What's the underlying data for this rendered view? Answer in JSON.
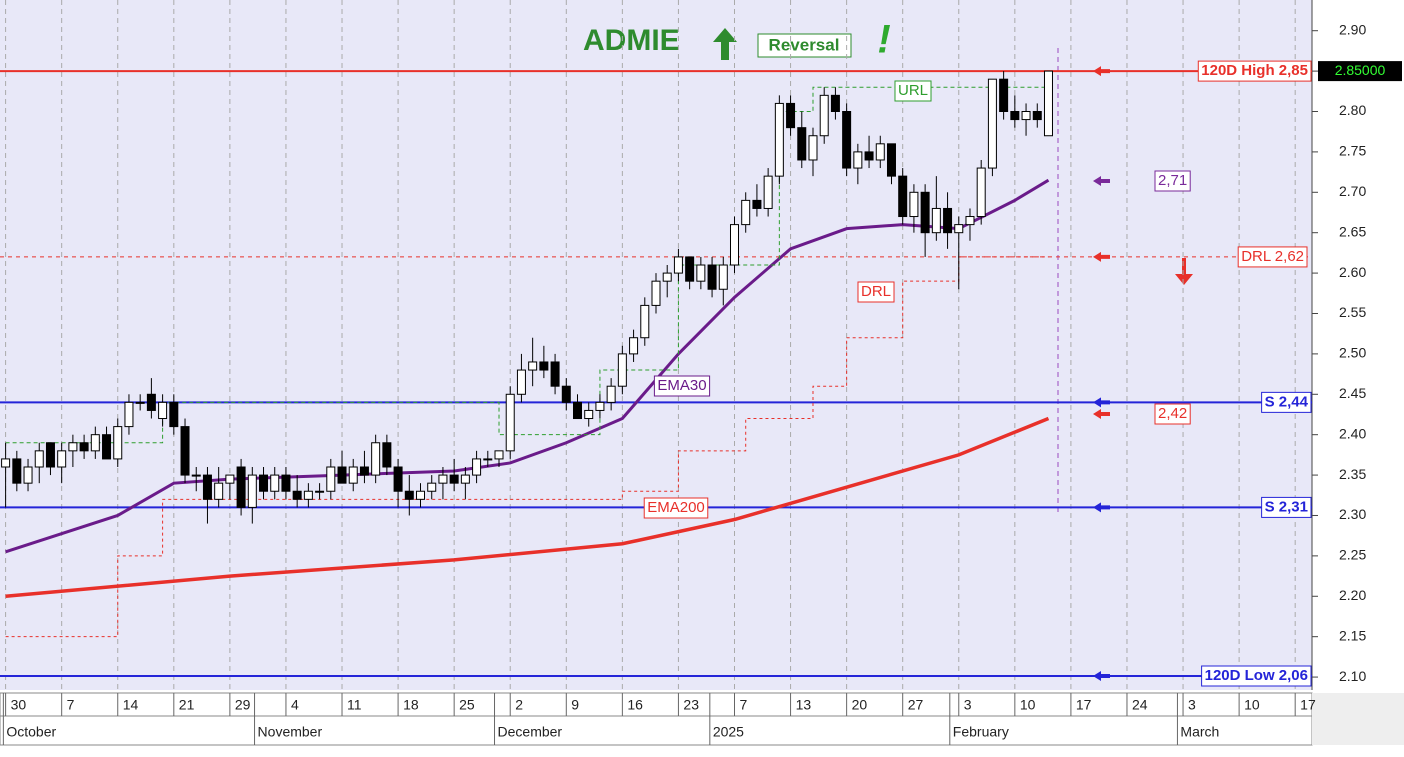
{
  "chart_data": {
    "type": "candlestick",
    "title": "ADMIE",
    "subtitle": "Reversal",
    "annotation_mark": "!",
    "ylim": [
      2.084,
      2.938
    ],
    "xlim": [
      -0.5,
      116.5
    ],
    "yticks": [
      {
        "value": 2.1,
        "label": "2.10"
      },
      {
        "value": 2.15,
        "label": "2.15"
      },
      {
        "value": 2.2,
        "label": "2.20"
      },
      {
        "value": 2.25,
        "label": "2.25"
      },
      {
        "value": 2.3,
        "label": "2.30"
      },
      {
        "value": 2.35,
        "label": "2.35"
      },
      {
        "value": 2.4,
        "label": "2.40"
      },
      {
        "value": 2.45,
        "label": "2.45"
      },
      {
        "value": 2.5,
        "label": "2.50"
      },
      {
        "value": 2.55,
        "label": "2.55"
      },
      {
        "value": 2.6,
        "label": "2.60"
      },
      {
        "value": 2.65,
        "label": "2.65"
      },
      {
        "value": 2.7,
        "label": "2.70"
      },
      {
        "value": 2.75,
        "label": "2.75"
      },
      {
        "value": 2.8,
        "label": "2.80"
      },
      {
        "value": 2.85,
        "label": "2.85"
      },
      {
        "value": 2.9,
        "label": "2.90"
      }
    ],
    "xticks": [
      {
        "value": 0,
        "label": "30"
      },
      {
        "value": 5,
        "label": "7"
      },
      {
        "value": 10,
        "label": "14"
      },
      {
        "value": 15,
        "label": "21"
      },
      {
        "value": 20,
        "label": "29"
      },
      {
        "value": 25,
        "label": "4"
      },
      {
        "value": 30,
        "label": "11"
      },
      {
        "value": 35,
        "label": "18"
      },
      {
        "value": 40,
        "label": "25"
      },
      {
        "value": 45,
        "label": "2"
      },
      {
        "value": 50,
        "label": "9"
      },
      {
        "value": 55,
        "label": "16"
      },
      {
        "value": 60,
        "label": "23"
      },
      {
        "value": 65,
        "label": "7"
      },
      {
        "value": 70,
        "label": "13"
      },
      {
        "value": 75,
        "label": "20"
      },
      {
        "value": 80,
        "label": "27"
      },
      {
        "value": 85,
        "label": "3"
      },
      {
        "value": 90,
        "label": "10"
      },
      {
        "value": 95,
        "label": "17"
      },
      {
        "value": 100,
        "label": "24"
      },
      {
        "value": 105,
        "label": "3"
      },
      {
        "value": 110,
        "label": "10"
      },
      {
        "value": 115,
        "label": "17"
      }
    ],
    "months": [
      {
        "value": -0.2,
        "label": "October"
      },
      {
        "value": 22.2,
        "label": "November"
      },
      {
        "value": 43.6,
        "label": "December"
      },
      {
        "value": 62.8,
        "label": "2025"
      },
      {
        "value": 84.2,
        "label": "February"
      },
      {
        "value": 104.5,
        "label": "March"
      }
    ],
    "grid": true,
    "candles": [
      [
        2.36,
        2.39,
        2.31,
        2.37
      ],
      [
        2.37,
        2.38,
        2.33,
        2.34
      ],
      [
        2.34,
        2.37,
        2.33,
        2.36
      ],
      [
        2.36,
        2.39,
        2.34,
        2.38
      ],
      [
        2.39,
        2.39,
        2.35,
        2.36
      ],
      [
        2.36,
        2.39,
        2.34,
        2.38
      ],
      [
        2.38,
        2.4,
        2.36,
        2.39
      ],
      [
        2.39,
        2.4,
        2.37,
        2.38
      ],
      [
        2.38,
        2.41,
        2.37,
        2.4
      ],
      [
        2.4,
        2.41,
        2.37,
        2.37
      ],
      [
        2.37,
        2.42,
        2.36,
        2.41
      ],
      [
        2.41,
        2.45,
        2.4,
        2.44
      ],
      [
        2.44,
        2.45,
        2.43,
        2.44
      ],
      [
        2.45,
        2.47,
        2.42,
        2.43
      ],
      [
        2.42,
        2.45,
        2.41,
        2.44
      ],
      [
        2.44,
        2.45,
        2.4,
        2.41
      ],
      [
        2.41,
        2.42,
        2.34,
        2.35
      ],
      [
        2.35,
        2.36,
        2.33,
        2.35
      ],
      [
        2.35,
        2.36,
        2.29,
        2.32
      ],
      [
        2.32,
        2.36,
        2.31,
        2.34
      ],
      [
        2.34,
        2.35,
        2.32,
        2.35
      ],
      [
        2.36,
        2.37,
        2.3,
        2.31
      ],
      [
        2.31,
        2.36,
        2.29,
        2.35
      ],
      [
        2.35,
        2.36,
        2.32,
        2.33
      ],
      [
        2.33,
        2.36,
        2.32,
        2.35
      ],
      [
        2.35,
        2.36,
        2.32,
        2.33
      ],
      [
        2.33,
        2.35,
        2.31,
        2.32
      ],
      [
        2.32,
        2.34,
        2.31,
        2.33
      ],
      [
        2.33,
        2.34,
        2.32,
        2.33
      ],
      [
        2.33,
        2.37,
        2.32,
        2.36
      ],
      [
        2.36,
        2.38,
        2.34,
        2.34
      ],
      [
        2.34,
        2.37,
        2.33,
        2.36
      ],
      [
        2.36,
        2.38,
        2.34,
        2.35
      ],
      [
        2.35,
        2.4,
        2.34,
        2.39
      ],
      [
        2.39,
        2.4,
        2.35,
        2.36
      ],
      [
        2.36,
        2.37,
        2.31,
        2.33
      ],
      [
        2.33,
        2.35,
        2.3,
        2.32
      ],
      [
        2.32,
        2.34,
        2.31,
        2.33
      ],
      [
        2.33,
        2.35,
        2.32,
        2.34
      ],
      [
        2.34,
        2.36,
        2.32,
        2.35
      ],
      [
        2.35,
        2.37,
        2.33,
        2.34
      ],
      [
        2.34,
        2.36,
        2.32,
        2.35
      ],
      [
        2.35,
        2.38,
        2.34,
        2.37
      ],
      [
        2.37,
        2.38,
        2.36,
        2.37
      ],
      [
        2.37,
        2.38,
        2.36,
        2.38
      ],
      [
        2.38,
        2.46,
        2.37,
        2.45
      ],
      [
        2.45,
        2.5,
        2.44,
        2.48
      ],
      [
        2.48,
        2.52,
        2.46,
        2.49
      ],
      [
        2.49,
        2.51,
        2.47,
        2.48
      ],
      [
        2.49,
        2.5,
        2.45,
        2.46
      ],
      [
        2.46,
        2.47,
        2.43,
        2.44
      ],
      [
        2.44,
        2.45,
        2.42,
        2.42
      ],
      [
        2.42,
        2.44,
        2.41,
        2.43
      ],
      [
        2.43,
        2.45,
        2.42,
        2.44
      ],
      [
        2.44,
        2.47,
        2.43,
        2.46
      ],
      [
        2.46,
        2.51,
        2.45,
        2.5
      ],
      [
        2.5,
        2.53,
        2.49,
        2.52
      ],
      [
        2.52,
        2.57,
        2.51,
        2.56
      ],
      [
        2.56,
        2.6,
        2.55,
        2.59
      ],
      [
        2.59,
        2.61,
        2.57,
        2.6
      ],
      [
        2.6,
        2.63,
        2.59,
        2.62
      ],
      [
        2.62,
        2.62,
        2.58,
        2.59
      ],
      [
        2.59,
        2.62,
        2.58,
        2.61
      ],
      [
        2.61,
        2.62,
        2.57,
        2.58
      ],
      [
        2.58,
        2.62,
        2.56,
        2.61
      ],
      [
        2.61,
        2.67,
        2.6,
        2.66
      ],
      [
        2.66,
        2.7,
        2.65,
        2.69
      ],
      [
        2.69,
        2.71,
        2.67,
        2.68
      ],
      [
        2.68,
        2.73,
        2.67,
        2.72
      ],
      [
        2.72,
        2.82,
        2.71,
        2.81
      ],
      [
        2.81,
        2.82,
        2.77,
        2.78
      ],
      [
        2.78,
        2.8,
        2.73,
        2.74
      ],
      [
        2.74,
        2.78,
        2.72,
        2.77
      ],
      [
        2.77,
        2.83,
        2.76,
        2.82
      ],
      [
        2.82,
        2.83,
        2.79,
        2.8
      ],
      [
        2.8,
        2.81,
        2.72,
        2.73
      ],
      [
        2.73,
        2.76,
        2.71,
        2.75
      ],
      [
        2.75,
        2.77,
        2.73,
        2.74
      ],
      [
        2.74,
        2.77,
        2.73,
        2.76
      ],
      [
        2.76,
        2.76,
        2.71,
        2.72
      ],
      [
        2.72,
        2.73,
        2.66,
        2.67
      ],
      [
        2.67,
        2.71,
        2.65,
        2.7
      ],
      [
        2.7,
        2.71,
        2.62,
        2.65
      ],
      [
        2.65,
        2.72,
        2.64,
        2.68
      ],
      [
        2.68,
        2.7,
        2.63,
        2.65
      ],
      [
        2.65,
        2.67,
        2.58,
        2.66
      ],
      [
        2.66,
        2.68,
        2.64,
        2.67
      ],
      [
        2.67,
        2.74,
        2.66,
        2.73
      ],
      [
        2.73,
        2.84,
        2.72,
        2.84
      ],
      [
        2.84,
        2.85,
        2.79,
        2.8
      ],
      [
        2.8,
        2.82,
        2.78,
        2.79
      ],
      [
        2.79,
        2.81,
        2.77,
        2.8
      ],
      [
        2.8,
        2.81,
        2.78,
        2.79
      ],
      [
        2.77,
        2.85,
        2.77,
        2.85
      ]
    ],
    "series": [
      {
        "name": "EMA30",
        "color": "#6a1b8a",
        "width": 3,
        "dash": "none",
        "x": [
          0,
          10,
          15,
          20,
          30,
          40,
          45,
          50,
          55,
          60,
          65,
          70,
          75,
          80,
          85,
          90,
          93
        ],
        "values": [
          2.255,
          2.3,
          2.34,
          2.345,
          2.35,
          2.355,
          2.365,
          2.39,
          2.42,
          2.5,
          2.57,
          2.63,
          2.655,
          2.66,
          2.655,
          2.69,
          2.715
        ]
      },
      {
        "name": "EMA200",
        "color": "#e8302a",
        "width": 3.5,
        "dash": "none",
        "x": [
          0,
          20,
          40,
          55,
          65,
          75,
          85,
          93
        ],
        "values": [
          2.2,
          2.225,
          2.245,
          2.265,
          2.295,
          2.335,
          2.375,
          2.42
        ]
      },
      {
        "name": "URL",
        "color": "#2e9e2e",
        "width": 1,
        "dash": "4 3",
        "x": [
          0,
          11,
          14,
          33,
          44,
          46,
          53,
          56,
          60,
          66,
          69,
          72,
          90,
          93
        ],
        "values": [
          2.39,
          2.39,
          2.44,
          2.44,
          2.4,
          2.4,
          2.48,
          2.48,
          2.61,
          2.61,
          2.8,
          2.83,
          2.83,
          2.85
        ]
      },
      {
        "name": "DRL",
        "color": "#e8302a",
        "width": 1,
        "dash": "3 3",
        "x": [
          0,
          6,
          10,
          14,
          30,
          38,
          44,
          55,
          60,
          66,
          72,
          75,
          80,
          85,
          93
        ],
        "values": [
          2.15,
          2.15,
          2.25,
          2.32,
          2.32,
          2.32,
          2.32,
          2.33,
          2.38,
          2.42,
          2.46,
          2.52,
          2.59,
          2.62,
          2.62
        ]
      }
    ],
    "levels": [
      {
        "label": "120D High 2,85",
        "value": 2.85,
        "color": "#e8302a"
      },
      {
        "label": "S 2,44",
        "value": 2.44,
        "color": "#2424d8"
      },
      {
        "label": "S 2,31",
        "value": 2.31,
        "color": "#2424d8"
      },
      {
        "label": "120D Low 2,06",
        "value": 2.06,
        "color": "#2424d8"
      },
      {
        "label": "DRL 2,62",
        "value": 2.62,
        "color": "#e8302a"
      }
    ],
    "markers": [
      {
        "label": "2,71",
        "value": 2.71,
        "color": "#7a2a9a"
      },
      {
        "label": "2,42",
        "value": 2.42,
        "color": "#e8302a"
      }
    ],
    "last_price": {
      "label": "2.85000",
      "value": 2.85
    }
  }
}
